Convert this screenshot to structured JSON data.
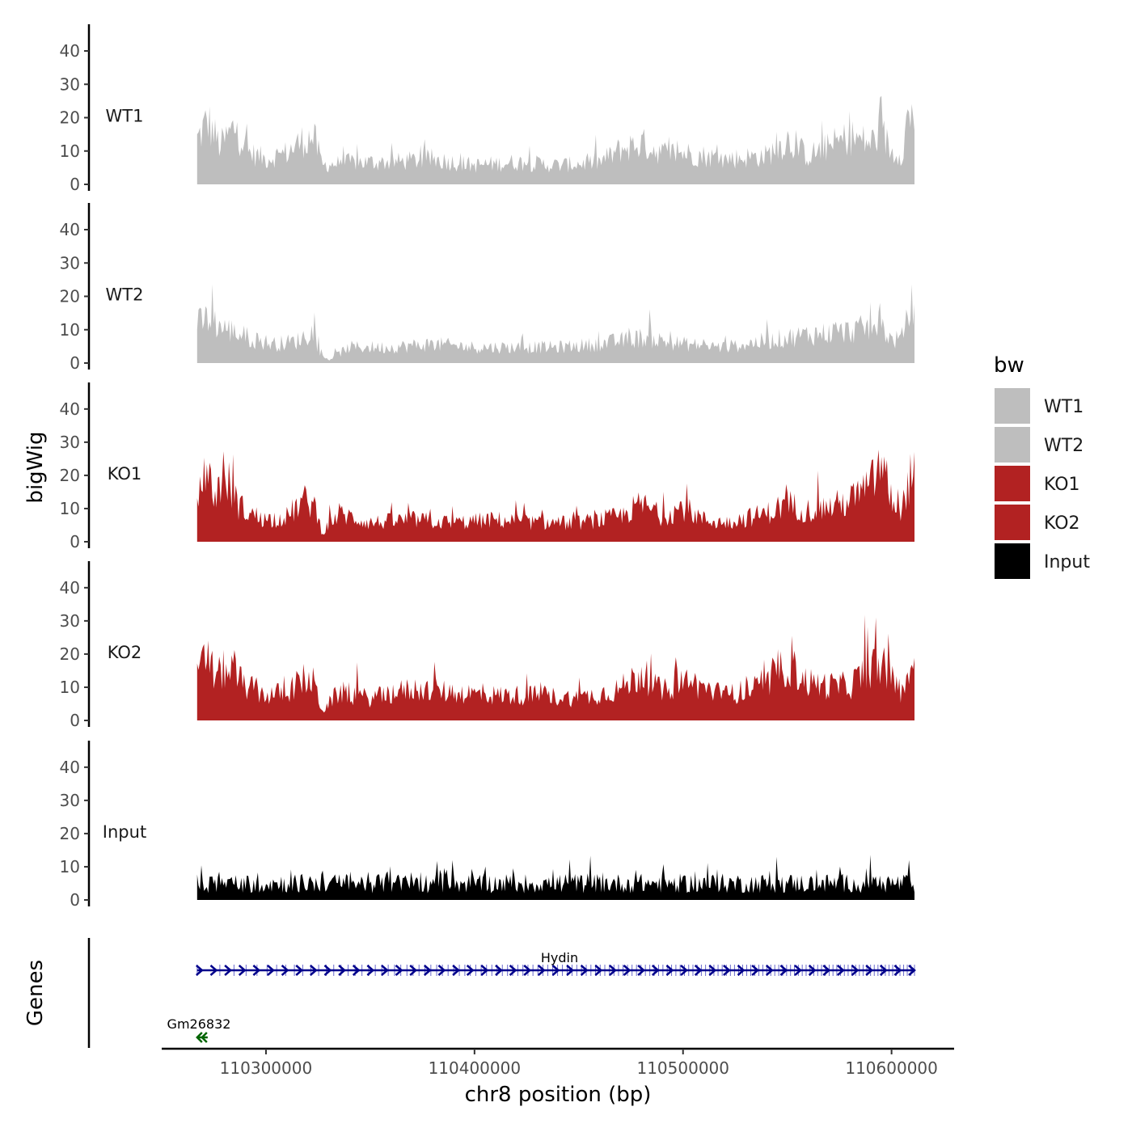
{
  "chart_data": {
    "type": "area",
    "xlabel": "chr8 position (bp)",
    "ylabel": "bigWig",
    "genes_ylabel": "Genes",
    "x_ticks": [
      110300000,
      110400000,
      110500000,
      110600000
    ],
    "x_tick_labels": [
      "110300000",
      "110400000",
      "110500000",
      "110600000"
    ],
    "xlim": [
      110250000,
      110630000
    ],
    "data_range": [
      110267000,
      110611000
    ],
    "ylim": [
      0,
      48
    ],
    "y_ticks": [
      0,
      10,
      20,
      30,
      40
    ],
    "y_tick_labels": [
      "0",
      "10",
      "20",
      "30",
      "40"
    ],
    "grid": false,
    "legend": {
      "title": "bw",
      "placement": "right",
      "entries": [
        {
          "label": "WT1",
          "color": "#bebebe"
        },
        {
          "label": "WT2",
          "color": "#bebebe"
        },
        {
          "label": "KO1",
          "color": "#b22222"
        },
        {
          "label": "KO2",
          "color": "#b22222"
        },
        {
          "label": "Input",
          "color": "#000000"
        }
      ]
    },
    "series": [
      {
        "name": "WT1",
        "color": "#bebebe",
        "x": [
          110267000,
          110272000,
          110278000,
          110285000,
          110292000,
          110300000,
          110310000,
          110318000,
          110323000,
          110327000,
          110340000,
          110360000,
          110380000,
          110400000,
          110420000,
          110440000,
          110460000,
          110470000,
          110480000,
          110490000,
          110500000,
          110520000,
          110540000,
          110550000,
          110560000,
          110570000,
          110580000,
          110590000,
          110595000,
          110600000,
          110605000,
          110608000,
          110611000
        ],
        "values": [
          14,
          20,
          12,
          18,
          10,
          8,
          10,
          14,
          15,
          6,
          7,
          7,
          8,
          6,
          7,
          6,
          7,
          11,
          13,
          10,
          10,
          8,
          9,
          14,
          9,
          12,
          15,
          13,
          17,
          10,
          10,
          22,
          22
        ]
      },
      {
        "name": "WT2",
        "color": "#bebebe",
        "x": [
          110267000,
          110272000,
          110280000,
          110288000,
          110296000,
          110305000,
          110315000,
          110322000,
          110327000,
          110330000,
          110340000,
          110360000,
          110380000,
          110400000,
          110420000,
          110440000,
          110460000,
          110480000,
          110500000,
          110520000,
          110540000,
          110560000,
          110580000,
          110595000,
          110600000,
          110605000,
          110608000,
          110611000
        ],
        "values": [
          12,
          14,
          11,
          9,
          7,
          6,
          7,
          10,
          2,
          1,
          5,
          5,
          6,
          5,
          5,
          5,
          6,
          8,
          6,
          5,
          7,
          9,
          10,
          12,
          7,
          8,
          14,
          22
        ]
      },
      {
        "name": "KO1",
        "color": "#b22222",
        "x": [
          110267000,
          110271000,
          110275000,
          110280000,
          110286000,
          110292000,
          110300000,
          110310000,
          110318000,
          110323000,
          110327000,
          110335000,
          110350000,
          110370000,
          110390000,
          110410000,
          110430000,
          110450000,
          110470000,
          110480000,
          110490000,
          110500000,
          110510000,
          110520000,
          110540000,
          110550000,
          110560000,
          110570000,
          110580000,
          110590000,
          110595000,
          110600000,
          110604000,
          110607000,
          110611000
        ],
        "values": [
          10,
          25,
          14,
          22,
          12,
          9,
          7,
          8,
          13,
          12,
          3,
          9,
          6,
          7,
          6,
          7,
          6,
          6,
          8,
          12,
          8,
          11,
          7,
          6,
          9,
          12,
          10,
          11,
          13,
          18,
          25,
          14,
          8,
          16,
          24
        ]
      },
      {
        "name": "KO2",
        "color": "#b22222",
        "x": [
          110267000,
          110271000,
          110276000,
          110282000,
          110290000,
          110300000,
          110310000,
          110318000,
          110323000,
          110327000,
          110335000,
          110350000,
          110370000,
          110390000,
          110410000,
          110430000,
          110450000,
          110470000,
          110480000,
          110490000,
          110500000,
          110520000,
          110540000,
          110550000,
          110560000,
          110570000,
          110580000,
          110590000,
          110595000,
          110600000,
          110605000,
          110611000
        ],
        "values": [
          13,
          20,
          14,
          17,
          11,
          8,
          9,
          13,
          12,
          3,
          9,
          7,
          10,
          9,
          8,
          8,
          7,
          10,
          15,
          9,
          13,
          8,
          11,
          18,
          12,
          11,
          11,
          17,
          18,
          13,
          9,
          20
        ]
      },
      {
        "name": "Input",
        "color": "#000000",
        "x": [
          110267000,
          110300000,
          110350000,
          110400000,
          110450000,
          110500000,
          110550000,
          110600000,
          110611000
        ],
        "values": [
          5,
          5,
          5,
          5,
          5,
          5,
          5,
          5,
          5
        ]
      }
    ],
    "genes": [
      {
        "name": "Hydin",
        "start": 110267000,
        "end": 110611000,
        "strand": "+",
        "color": "#00008b"
      },
      {
        "name": "Gm26832",
        "start": 110267000,
        "end": 110270000,
        "strand": "-",
        "color": "#006400"
      }
    ]
  }
}
